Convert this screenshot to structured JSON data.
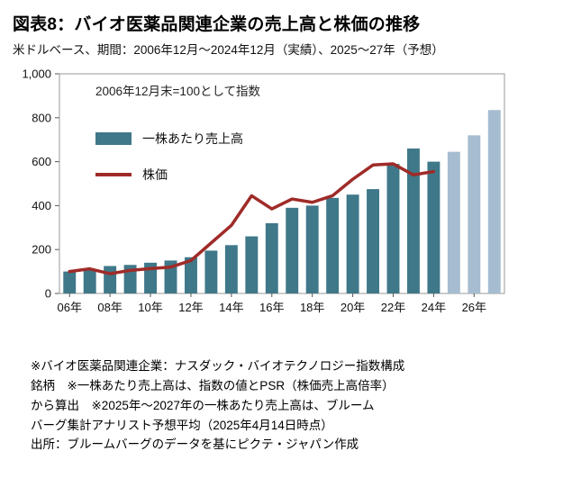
{
  "title": "図表8：バイオ医薬品関連企業の売上高と株価の推移",
  "subtitle": "米ドルベース、期間：2006年12月～2024年12月（実績）、2025～27年（予想）",
  "chart_data": {
    "type": "bar",
    "title": "図表8：バイオ医薬品関連企業の売上高と株価の推移",
    "annotation": "2006年12月末=100として指数",
    "x": [
      2006,
      2007,
      2008,
      2009,
      2010,
      2011,
      2012,
      2013,
      2014,
      2015,
      2016,
      2017,
      2018,
      2019,
      2020,
      2021,
      2022,
      2023,
      2024,
      2025,
      2026,
      2027
    ],
    "x_tick_years": [
      2006,
      2008,
      2010,
      2012,
      2014,
      2016,
      2018,
      2020,
      2022,
      2024,
      2026
    ],
    "x_tick_labels": [
      "06年",
      "08年",
      "10年",
      "12年",
      "14年",
      "16年",
      "18年",
      "20年",
      "22年",
      "24年",
      "26年"
    ],
    "ylim": [
      0,
      1000
    ],
    "y_tick_values": [
      0,
      200,
      400,
      600,
      800,
      1000
    ],
    "y_tick_labels": [
      "0",
      "200",
      "400",
      "600",
      "800",
      "1,000"
    ],
    "grid": false,
    "legend_position": "upper-left",
    "series": [
      {
        "name": "一株あたり売上高",
        "type": "bar",
        "color": "#3f7889",
        "forecast_color": "#a6bcd0",
        "forecast_from": 2025,
        "values": [
          100,
          110,
          125,
          130,
          140,
          150,
          165,
          195,
          220,
          260,
          320,
          390,
          400,
          435,
          450,
          475,
          590,
          660,
          600,
          645,
          720,
          835
        ]
      },
      {
        "name": "株価",
        "type": "line",
        "color": "#9f2b28",
        "x_start": 2006,
        "values": [
          100,
          112,
          90,
          105,
          113,
          120,
          150,
          230,
          310,
          445,
          385,
          430,
          415,
          445,
          520,
          585,
          590,
          540,
          555
        ]
      }
    ]
  },
  "footnotes": {
    "lines": [
      "※バイオ医薬品関連企業：ナスダック・バイオテクノロジー指数構成",
      "銘柄　※一株あたり売上高は、指数の値とPSR（株価売上高倍率）",
      "から算出　※2025年～2027年の一株あたり売上高は、ブルーム",
      "バーグ集計アナリスト予想平均（2025年4月14日時点）",
      "出所：ブルームバーグのデータを基にピクテ・ジャパン作成"
    ]
  }
}
